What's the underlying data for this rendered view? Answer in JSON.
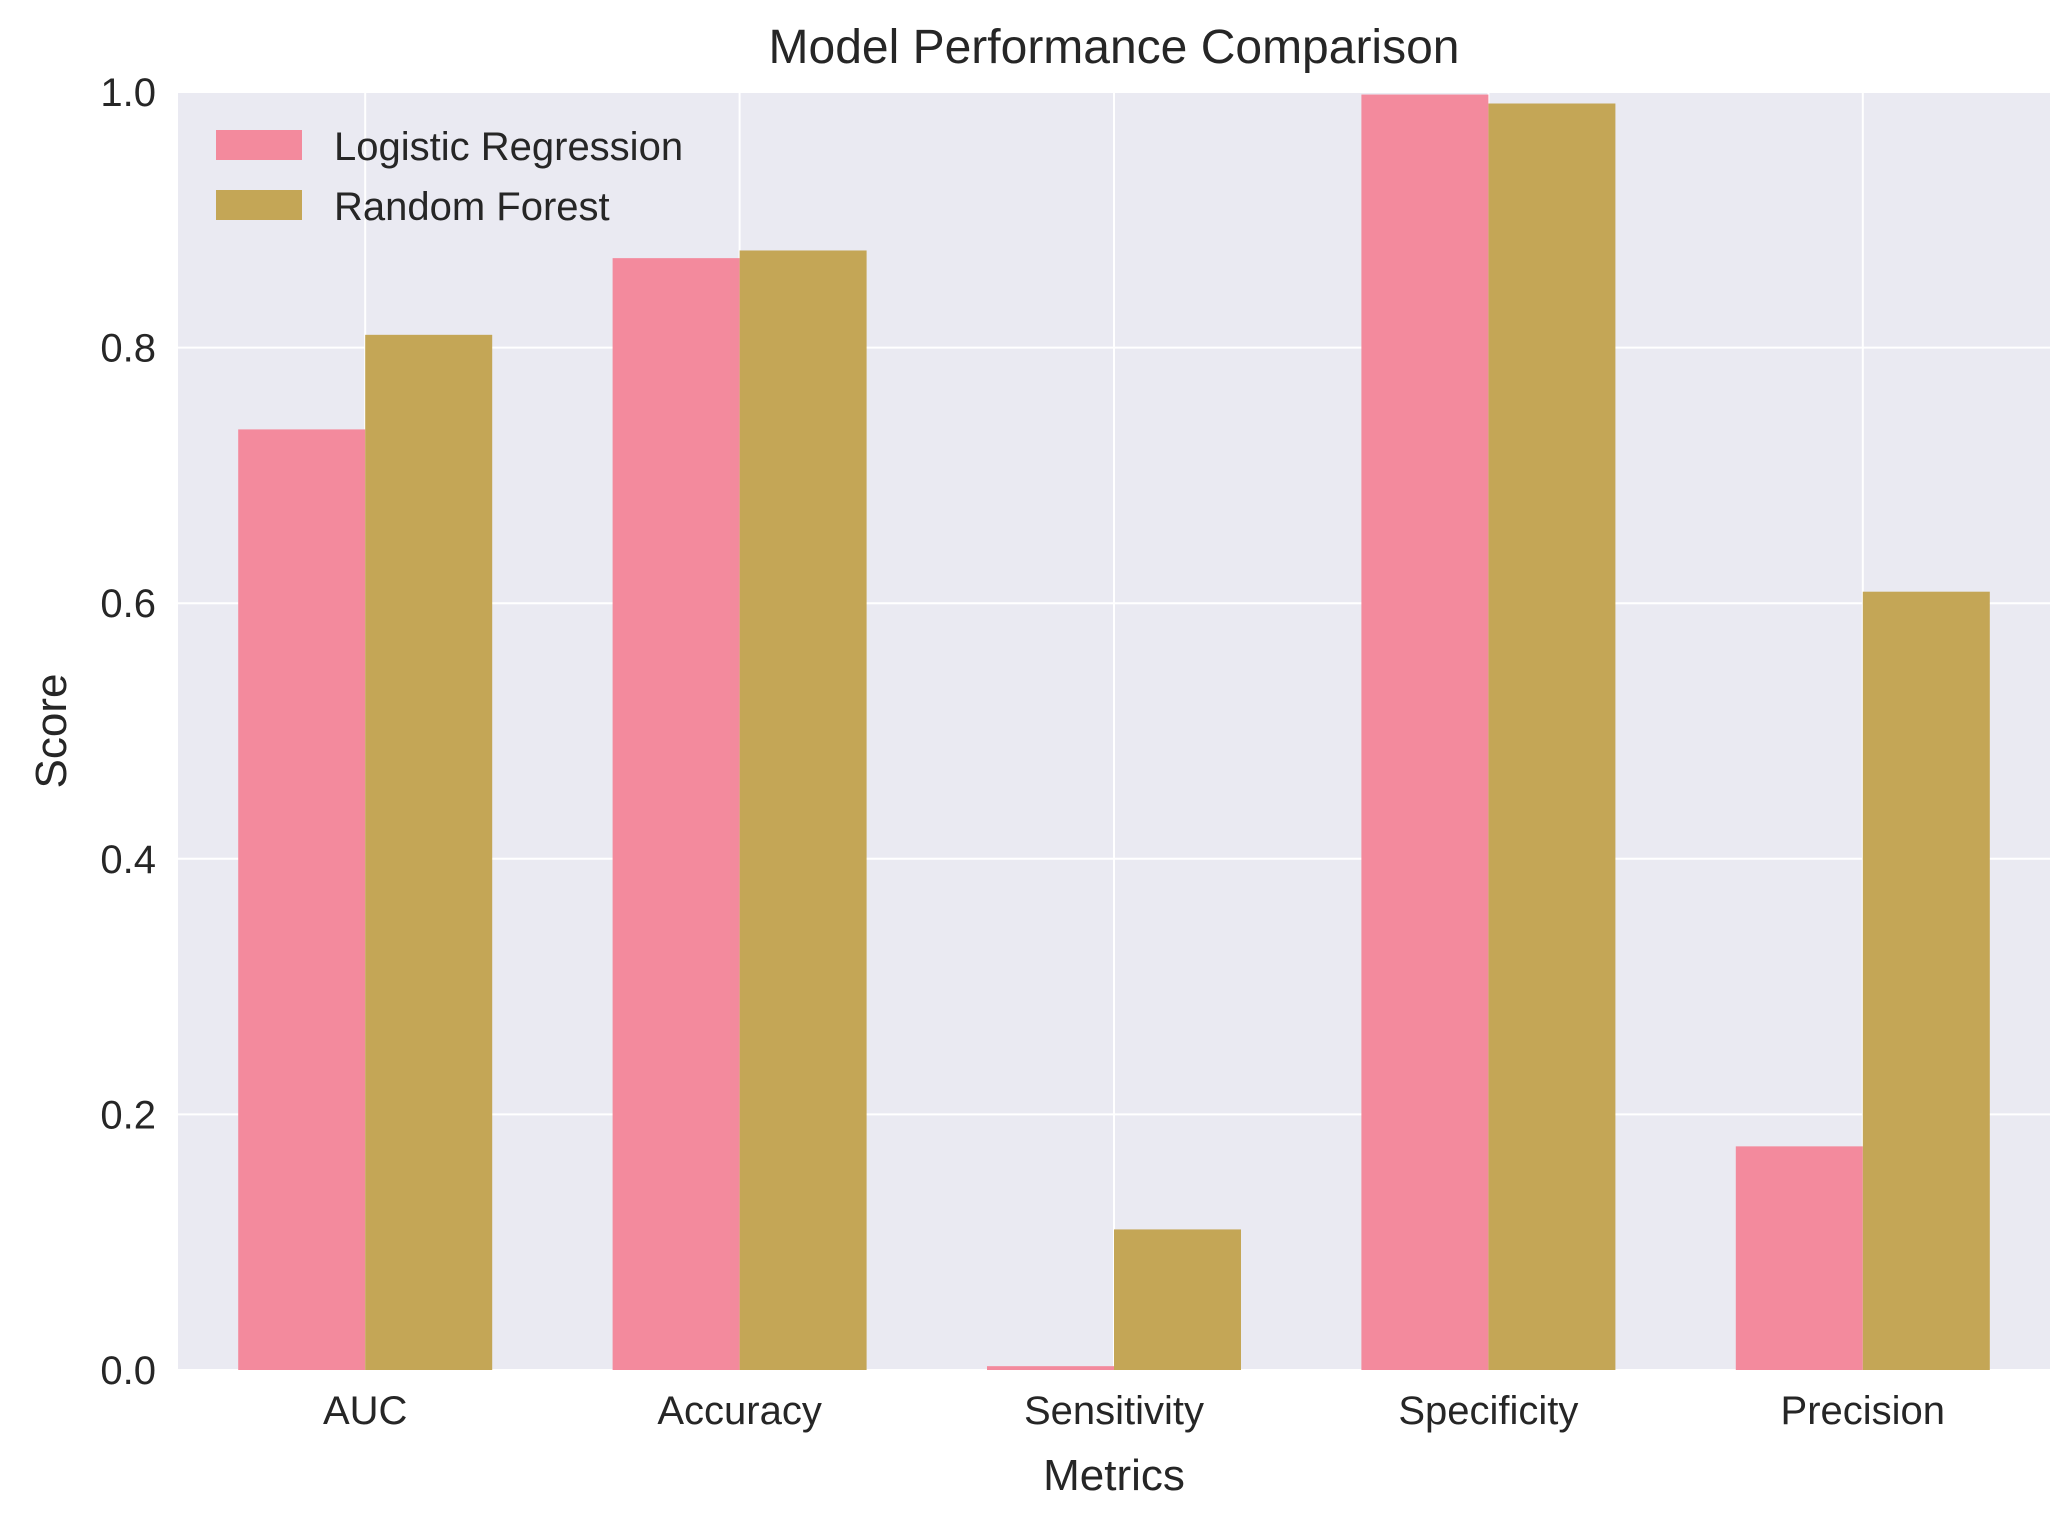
{
  "chart_data": {
    "type": "bar",
    "title": "Model Performance Comparison",
    "xlabel": "Metrics",
    "ylabel": "Score",
    "categories": [
      "AUC",
      "Accuracy",
      "Sensitivity",
      "Specificity",
      "Precision"
    ],
    "series": [
      {
        "name": "Logistic Regression",
        "color": "#f38a9d",
        "values": [
          0.736,
          0.87,
          0.003,
          0.998,
          0.175
        ]
      },
      {
        "name": "Random Forest",
        "color": "#c4a656",
        "values": [
          0.81,
          0.876,
          0.11,
          0.991,
          0.609
        ]
      }
    ],
    "ylim": [
      0,
      1.0
    ],
    "yticks": [
      "0.0",
      "0.2",
      "0.4",
      "0.6",
      "0.8",
      "1.0"
    ],
    "grid": true,
    "legend_position": "top-left",
    "plot_background": "#eaeaf2",
    "grid_color": "#ffffff"
  }
}
